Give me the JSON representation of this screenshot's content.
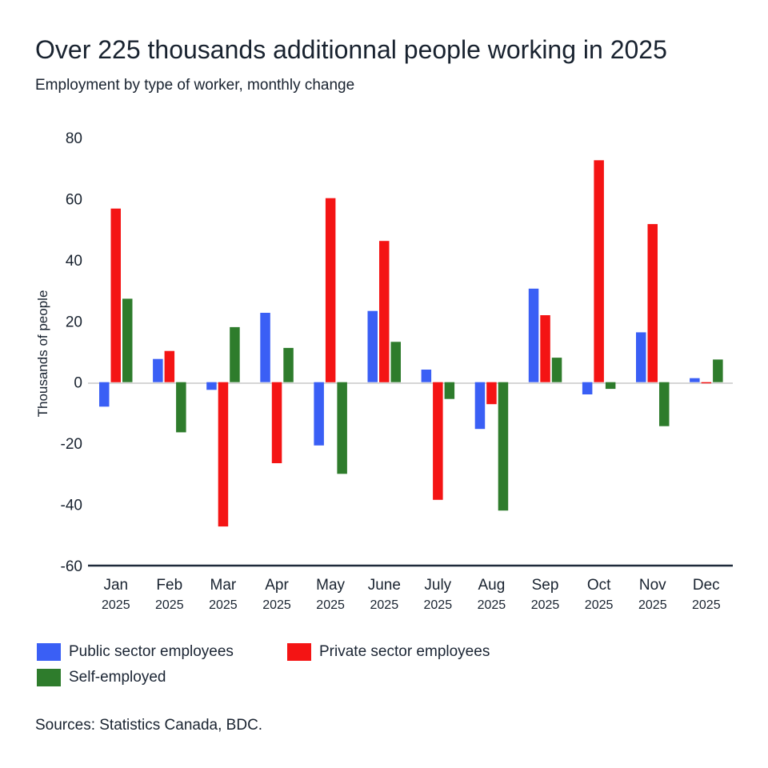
{
  "header": {
    "title": "Over 225 thousands additionnal people working in 2025",
    "subtitle": "Employment by type of worker, monthly change"
  },
  "footer": {
    "source": "Sources: Statistics Canada, BDC."
  },
  "chart_data": {
    "type": "bar",
    "title": "Over 225 thousands additionnal people working in 2025",
    "subtitle": "Employment by type of worker, monthly change",
    "xlabel": "",
    "ylabel": "Thousands of people",
    "ylim": [
      -60,
      80
    ],
    "yticks": [
      80,
      60,
      40,
      20,
      0,
      -20,
      -40,
      -60
    ],
    "grid": false,
    "legend_position": "bottom",
    "categories": [
      "Jan",
      "Feb",
      "Mar",
      "Apr",
      "May",
      "June",
      "July",
      "Aug",
      "Sep",
      "Oct",
      "Nov",
      "Dec"
    ],
    "category_years": [
      "2025",
      "2025",
      "2025",
      "2025",
      "2025",
      "2025",
      "2025",
      "2025",
      "2025",
      "2025",
      "2025",
      "2025"
    ],
    "series": [
      {
        "name": "Public sector employees",
        "color": "#3a5ff5",
        "values": [
          -8,
          7.6,
          -2.5,
          22.7,
          -20.7,
          23.3,
          4.1,
          -15.3,
          30.6,
          -4,
          16.3,
          1.3
        ]
      },
      {
        "name": "Private sector employees",
        "color": "#f41414",
        "values": [
          56.8,
          10.2,
          -47.2,
          -26.5,
          60.2,
          46.2,
          -38.5,
          -7.2,
          21.9,
          72.6,
          51.7,
          -0.4
        ]
      },
      {
        "name": "Self-employed",
        "color": "#2e7c2c",
        "values": [
          27.3,
          -16.4,
          18,
          11.2,
          -30,
          13.2,
          -5.5,
          -42,
          8,
          -2.2,
          -14.4,
          7.4
        ]
      }
    ]
  }
}
